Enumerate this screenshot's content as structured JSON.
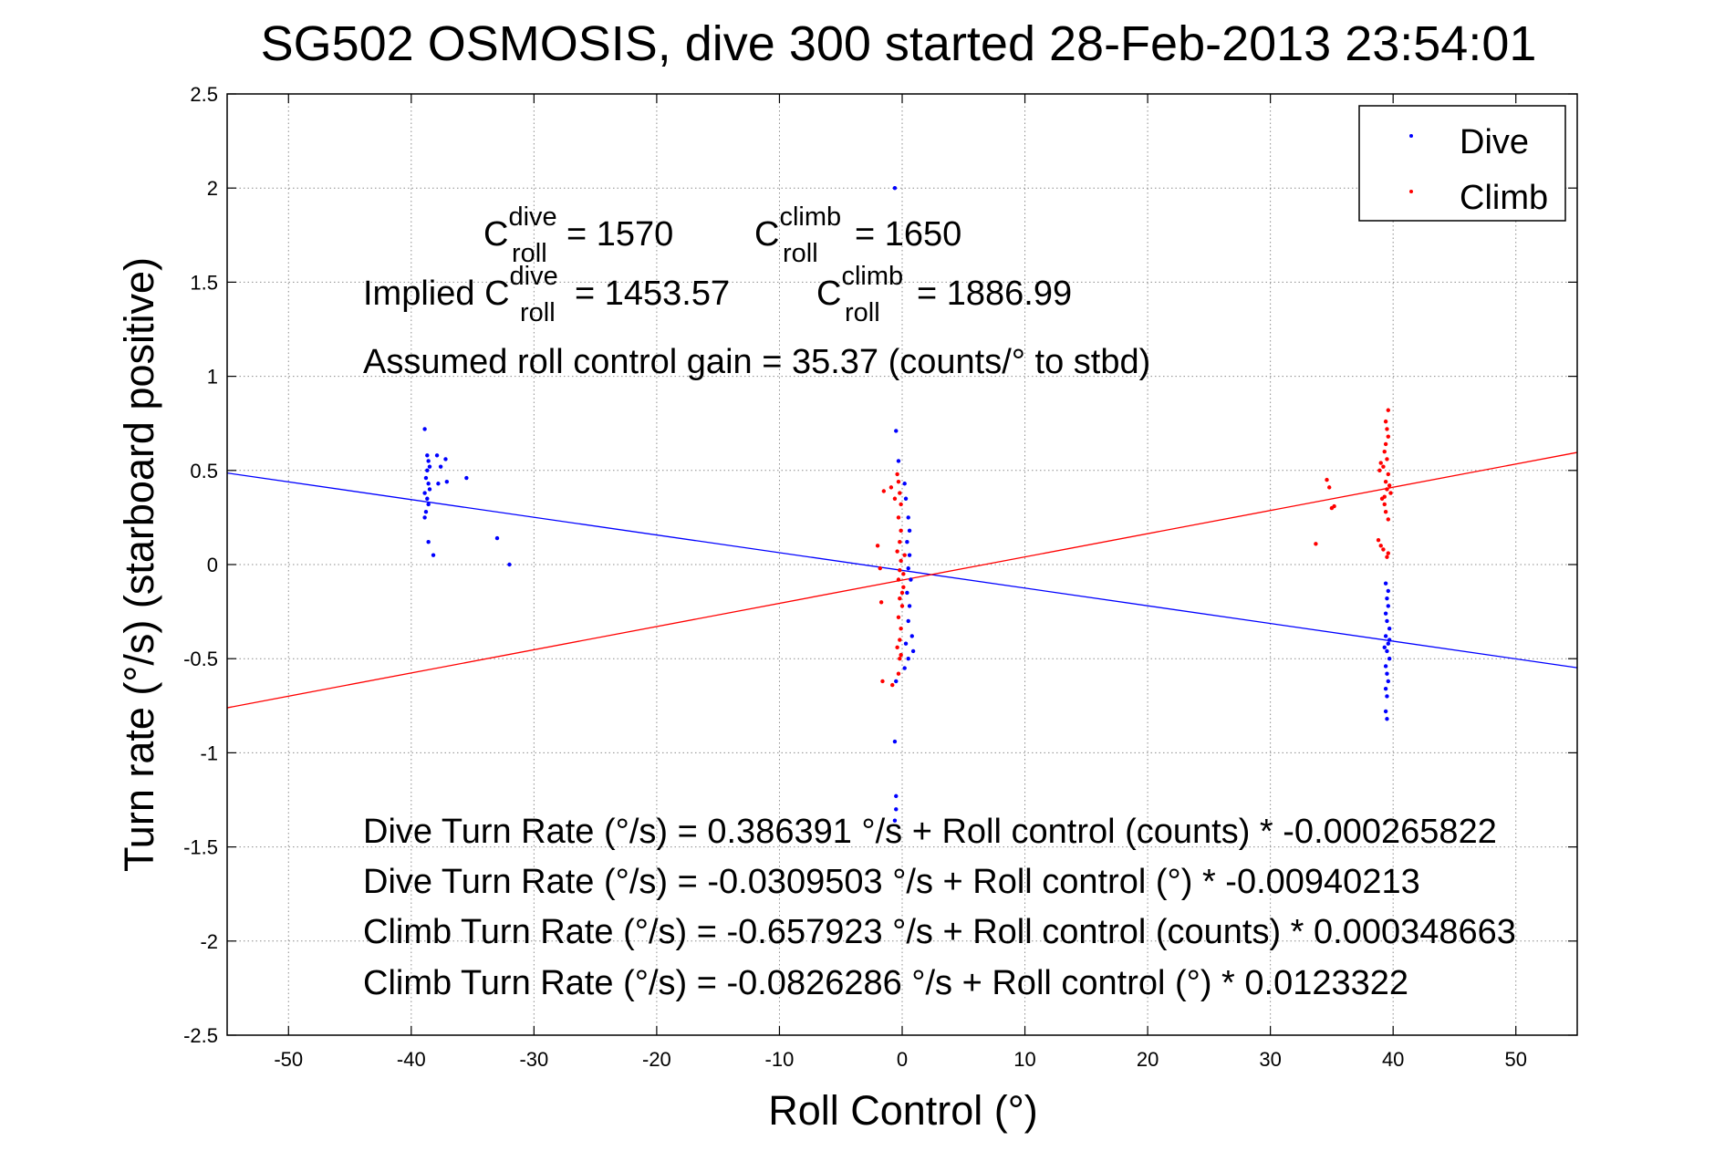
{
  "chart_data": {
    "type": "scatter",
    "title": "SG502 OSMOSIS, dive 300 started 28-Feb-2013 23:54:01",
    "xlabel": "Roll Control (°)",
    "ylabel": "Turn rate (°/s) (starboard positive)",
    "xlim": [
      -55,
      55
    ],
    "ylim": [
      -2.5,
      2.5
    ],
    "x_ticks": [
      -50,
      -40,
      -30,
      -20,
      -10,
      0,
      10,
      20,
      30,
      40,
      50
    ],
    "y_ticks": [
      -2.5,
      -2,
      -1.5,
      -1,
      -0.5,
      0,
      0.5,
      1,
      1.5,
      2,
      2.5
    ],
    "x_tick_labels": [
      "-50",
      "-40",
      "-30",
      "-20",
      "-10",
      "0",
      "10",
      "20",
      "30",
      "40",
      "50"
    ],
    "y_tick_labels": [
      "-2.5",
      "-2",
      "-1.5",
      "-1",
      "-0.5",
      "0",
      "0.5",
      "1",
      "1.5",
      "2",
      "2.5"
    ],
    "grid": true,
    "legend_position": "top-right",
    "series": [
      {
        "name": "Dive",
        "color": "#0000ff",
        "points": [
          [
            -38.9,
            0.72
          ],
          [
            -38.7,
            0.58
          ],
          [
            -38.6,
            0.55
          ],
          [
            -38.5,
            0.52
          ],
          [
            -38.7,
            0.5
          ],
          [
            -38.8,
            0.46
          ],
          [
            -38.6,
            0.43
          ],
          [
            -38.5,
            0.4
          ],
          [
            -38.9,
            0.38
          ],
          [
            -38.7,
            0.35
          ],
          [
            -38.6,
            0.32
          ],
          [
            -38.8,
            0.28
          ],
          [
            -38.9,
            0.25
          ],
          [
            -38.6,
            0.12
          ],
          [
            -37.9,
            0.58
          ],
          [
            -37.6,
            0.52
          ],
          [
            -37.8,
            0.43
          ],
          [
            -37.2,
            0.56
          ],
          [
            -37.1,
            0.44
          ],
          [
            -35.5,
            0.46
          ],
          [
            -38.2,
            0.05
          ],
          [
            -33.0,
            0.14
          ],
          [
            -32.0,
            0.0
          ],
          [
            -0.6,
            2.0
          ],
          [
            -0.5,
            0.71
          ],
          [
            -0.3,
            0.55
          ],
          [
            0.2,
            0.43
          ],
          [
            0.3,
            0.35
          ],
          [
            0.5,
            0.25
          ],
          [
            0.6,
            0.18
          ],
          [
            0.4,
            0.12
          ],
          [
            0.6,
            0.05
          ],
          [
            0.5,
            -0.02
          ],
          [
            0.7,
            -0.08
          ],
          [
            0.4,
            -0.15
          ],
          [
            0.6,
            -0.22
          ],
          [
            0.5,
            -0.3
          ],
          [
            0.8,
            -0.38
          ],
          [
            0.3,
            -0.42
          ],
          [
            0.9,
            -0.46
          ],
          [
            0.5,
            -0.5
          ],
          [
            0.2,
            -0.55
          ],
          [
            -0.5,
            -0.62
          ],
          [
            -0.6,
            -0.94
          ],
          [
            -0.5,
            -1.23
          ],
          [
            -0.5,
            -1.3
          ],
          [
            -0.6,
            -1.36
          ],
          [
            39.4,
            -0.1
          ],
          [
            39.6,
            -0.14
          ],
          [
            39.5,
            -0.18
          ],
          [
            39.6,
            -0.22
          ],
          [
            39.4,
            -0.26
          ],
          [
            39.5,
            -0.3
          ],
          [
            39.7,
            -0.34
          ],
          [
            39.4,
            -0.38
          ],
          [
            39.6,
            -0.42
          ],
          [
            39.5,
            -0.46
          ],
          [
            39.7,
            -0.5
          ],
          [
            39.4,
            -0.54
          ],
          [
            39.5,
            -0.58
          ],
          [
            39.6,
            -0.62
          ],
          [
            39.4,
            -0.66
          ],
          [
            39.5,
            -0.7
          ],
          [
            39.4,
            -0.78
          ],
          [
            39.5,
            -0.82
          ],
          [
            39.7,
            -0.4
          ],
          [
            39.3,
            -0.44
          ]
        ]
      },
      {
        "name": "Climb",
        "color": "#ff0000",
        "points": [
          [
            -1.5,
            0.39
          ],
          [
            -0.9,
            0.41
          ],
          [
            -0.6,
            0.35
          ],
          [
            -0.4,
            0.48
          ],
          [
            -0.3,
            0.44
          ],
          [
            -0.2,
            0.38
          ],
          [
            -0.1,
            0.32
          ],
          [
            -0.3,
            0.25
          ],
          [
            -0.1,
            0.18
          ],
          [
            -0.2,
            0.12
          ],
          [
            -0.4,
            0.07
          ],
          [
            -0.1,
            0.02
          ],
          [
            -0.2,
            -0.03
          ],
          [
            -0.3,
            -0.08
          ],
          [
            0.1,
            -0.12
          ],
          [
            -0.2,
            -0.18
          ],
          [
            0.0,
            -0.22
          ],
          [
            -0.3,
            -0.28
          ],
          [
            -0.1,
            -0.34
          ],
          [
            -0.2,
            -0.4
          ],
          [
            -0.4,
            -0.44
          ],
          [
            -0.1,
            -0.48
          ],
          [
            -1.6,
            -0.62
          ],
          [
            -0.8,
            -0.64
          ],
          [
            -0.3,
            -0.58
          ],
          [
            -2.0,
            0.1
          ],
          [
            -1.8,
            -0.02
          ],
          [
            -1.7,
            -0.2
          ],
          [
            -0.2,
            -0.5
          ],
          [
            0.1,
            -0.05
          ],
          [
            0.2,
            0.05
          ],
          [
            0.0,
            -0.15
          ],
          [
            33.7,
            0.11
          ],
          [
            34.6,
            0.45
          ],
          [
            34.8,
            0.41
          ],
          [
            35.2,
            0.31
          ],
          [
            35.0,
            0.3
          ],
          [
            38.8,
            0.13
          ],
          [
            39.0,
            0.1
          ],
          [
            39.2,
            0.08
          ],
          [
            39.5,
            0.04
          ],
          [
            39.6,
            0.06
          ],
          [
            39.3,
            0.32
          ],
          [
            39.4,
            0.28
          ],
          [
            39.6,
            0.24
          ],
          [
            39.3,
            0.36
          ],
          [
            39.5,
            0.4
          ],
          [
            39.4,
            0.44
          ],
          [
            39.6,
            0.48
          ],
          [
            39.2,
            0.52
          ],
          [
            39.5,
            0.56
          ],
          [
            39.3,
            0.6
          ],
          [
            39.4,
            0.64
          ],
          [
            39.6,
            0.68
          ],
          [
            39.5,
            0.72
          ],
          [
            39.4,
            0.76
          ],
          [
            39.6,
            0.82
          ],
          [
            39.0,
            0.54
          ],
          [
            38.9,
            0.5
          ],
          [
            39.7,
            0.42
          ],
          [
            39.8,
            0.38
          ],
          [
            39.1,
            0.35
          ]
        ]
      }
    ],
    "fit_lines": [
      {
        "name": "Dive",
        "color": "#0000ff",
        "intercept": -0.0309503,
        "slope": -0.00940213
      },
      {
        "name": "Climb",
        "color": "#ff0000",
        "intercept": -0.0826286,
        "slope": 0.0123322
      }
    ],
    "annotations": {
      "c_roll_symbol": "C",
      "roll_sub": "roll",
      "dive_sup": "dive",
      "climb_sup": "climb",
      "dive_value": " = 1570",
      "climb_value": " = 1650",
      "implied_prefix": "Implied ",
      "implied_dive_value": " = 1453.57",
      "implied_climb_value": " = 1886.99",
      "gain": "Assumed roll control gain = 35.37 (counts/° to stbd)",
      "eq1": "Dive Turn Rate (°/s) = 0.386391 °/s + Roll control (counts) * -0.000265822",
      "eq2": "Dive Turn Rate (°/s) = -0.0309503 °/s + Roll control (°) * -0.00940213",
      "eq3": "Climb Turn Rate (°/s) = -0.657923 °/s + Roll control (counts) * 0.000348663",
      "eq4": "Climb Turn Rate (°/s) = -0.0826286 °/s + Roll control (°) * 0.0123322"
    }
  }
}
